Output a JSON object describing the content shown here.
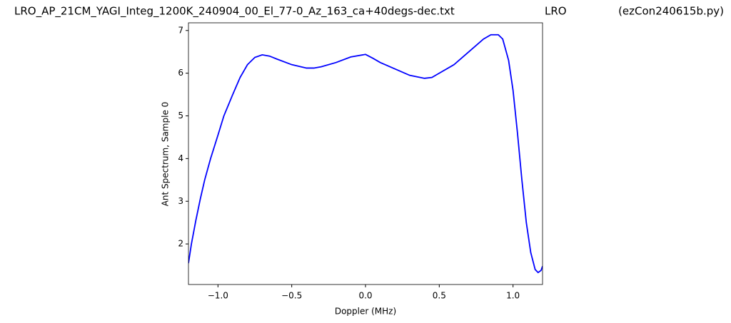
{
  "chart_data": {
    "type": "line",
    "titles": [
      "LRO_AP_21CM_YAGI_Integ_1200K_240904_00_El_77-0_Az_163_ca+40degs-dec.txt",
      "LRO",
      "(ezCon240615b.py)"
    ],
    "x_label": "Doppler (MHz)",
    "y_label": "Ant Spectrum, Sample 0",
    "x": [
      -1.2,
      -1.18,
      -1.15,
      -1.12,
      -1.09,
      -1.05,
      -1.0,
      -0.96,
      -0.9,
      -0.85,
      -0.8,
      -0.75,
      -0.7,
      -0.65,
      -0.6,
      -0.5,
      -0.4,
      -0.35,
      -0.3,
      -0.2,
      -0.1,
      0,
      0.05,
      0.1,
      0.2,
      0.3,
      0.4,
      0.45,
      0.5,
      0.6,
      0.7,
      0.8,
      0.85,
      0.9,
      0.93,
      0.97,
      1.0,
      1.03,
      1.06,
      1.09,
      1.12,
      1.15,
      1.17,
      1.19,
      1.2
    ],
    "series": [
      {
        "name": "Ant Spectrum",
        "color": "#0000ff",
        "values": [
          1.55,
          2.0,
          2.55,
          3.05,
          3.5,
          4.0,
          4.55,
          5.0,
          5.5,
          5.9,
          6.2,
          6.37,
          6.43,
          6.4,
          6.33,
          6.2,
          6.12,
          6.12,
          6.15,
          6.25,
          6.38,
          6.44,
          6.35,
          6.25,
          6.1,
          5.95,
          5.88,
          5.9,
          6.0,
          6.2,
          6.5,
          6.8,
          6.9,
          6.9,
          6.8,
          6.3,
          5.6,
          4.6,
          3.5,
          2.5,
          1.8,
          1.4,
          1.33,
          1.38,
          1.48
        ]
      }
    ],
    "xlim": [
      -1.2,
      1.2
    ],
    "ylim": [
      1.05,
      7.18
    ],
    "xticks": [
      {
        "value": -1,
        "label": "−1.0"
      },
      {
        "value": -0.5,
        "label": "−0.5"
      },
      {
        "value": 0,
        "label": "0.0"
      },
      {
        "value": 0.5,
        "label": "0.5"
      },
      {
        "value": 1,
        "label": "1.0"
      }
    ],
    "yticks": [
      2,
      3,
      4,
      5,
      6,
      7
    ]
  }
}
